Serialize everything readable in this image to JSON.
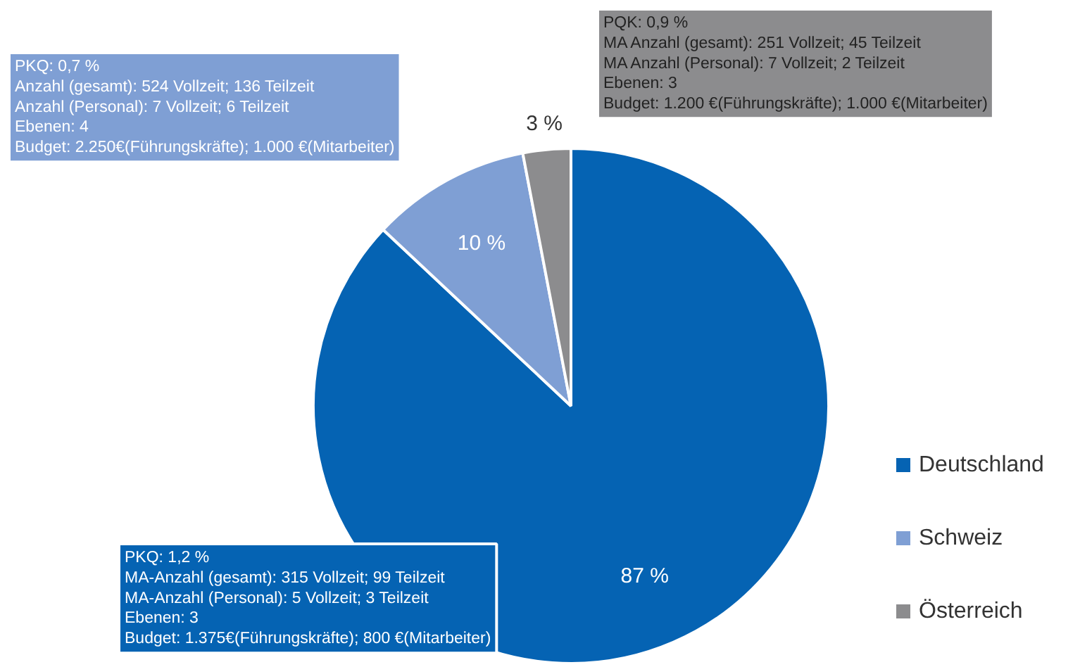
{
  "chart_data": {
    "type": "pie",
    "categories": [
      "Deutschland",
      "Schweiz",
      "Österreich"
    ],
    "values": [
      87,
      10,
      3
    ],
    "colors": [
      "#0563b3",
      "#7f9fd4",
      "#8c8c8e"
    ],
    "value_labels": [
      "87 %",
      "10 %",
      "3 %"
    ],
    "legend": "right",
    "annotations": [
      "PKQ: 1,2 %\nMA-Anzahl (gesamt): 315 Vollzeit; 99 Teilzeit\nMA-Anzahl (Personal): 5 Vollzeit; 3 Teilzeit\nEbenen: 3\nBudget: 1.375€(Führungskräfte); 800 €(Mitarbeiter)",
      "PKQ: 0,7 %\nAnzahl (gesamt): 524 Vollzeit; 136 Teilzeit\nAnzahl (Personal): 7 Vollzeit; 6 Teilzeit\nEbenen: 4\nBudget: 2.250€(Führungskräfte); 1.000 €(Mitarbeiter)",
      "PQK: 0,9 %\nMA  Anzahl (gesamt): 251 Vollzeit; 45 Teilzeit\nMA  Anzahl (Personal): 7 Vollzeit; 2 Teilzeit\nEbenen: 3\nBudget: 1.200 €(Führungskräfte); 1.000 €(Mitarbeiter)"
    ]
  }
}
